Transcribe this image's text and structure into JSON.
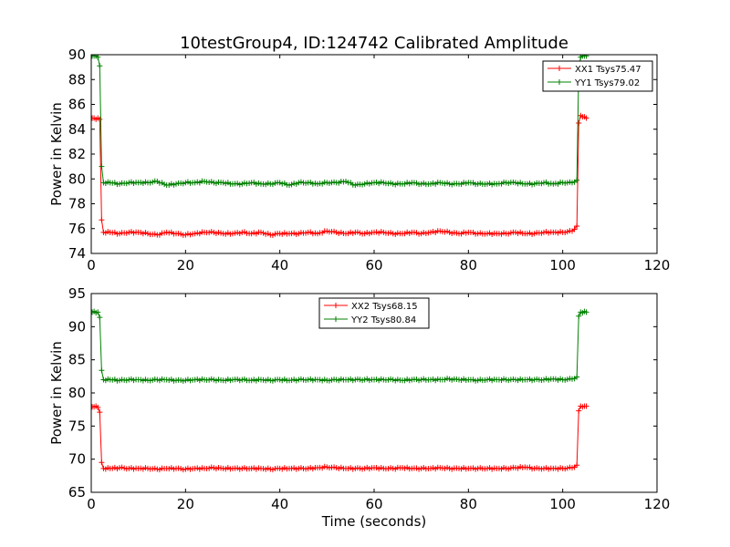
{
  "title": "10testGroup4, ID:124742 Calibrated Amplitude",
  "colors": {
    "red": "#ff0000",
    "green": "#008000"
  },
  "chart_data": [
    {
      "type": "line",
      "title": "10testGroup4, ID:124742 Calibrated Amplitude",
      "xlabel": "",
      "ylabel": "Power in Kelvin",
      "xlim": [
        0,
        120
      ],
      "ylim": [
        74,
        90
      ],
      "xticks": [
        "0",
        "20",
        "40",
        "60",
        "80",
        "100",
        "120"
      ],
      "yticks": [
        "74",
        "76",
        "78",
        "80",
        "82",
        "84",
        "86",
        "88",
        "90"
      ],
      "grid": false,
      "legend_position": "top-right",
      "series": [
        {
          "name": "XX1 Tsys75.47",
          "color": "#ff0000",
          "marker": "+",
          "x": [
            0.2,
            0.6,
            1.0,
            1.4,
            1.8,
            2.2,
            2.6,
            4,
            6,
            8,
            10,
            12,
            14,
            16,
            18,
            20,
            22,
            24,
            26,
            28,
            30,
            32,
            34,
            36,
            38,
            40,
            42,
            44,
            46,
            48,
            50,
            52,
            54,
            56,
            58,
            60,
            62,
            64,
            66,
            68,
            70,
            72,
            74,
            76,
            78,
            80,
            82,
            84,
            86,
            88,
            90,
            92,
            94,
            96,
            98,
            100,
            102,
            103.0,
            103.4,
            103.8,
            104.2,
            104.6,
            105.0
          ],
          "y": [
            84.9,
            84.9,
            84.8,
            84.9,
            84.8,
            76.7,
            75.7,
            75.7,
            75.6,
            75.7,
            75.7,
            75.6,
            75.5,
            75.7,
            75.6,
            75.5,
            75.6,
            75.7,
            75.7,
            75.6,
            75.6,
            75.7,
            75.6,
            75.7,
            75.5,
            75.6,
            75.6,
            75.6,
            75.7,
            75.6,
            75.8,
            75.7,
            75.6,
            75.7,
            75.6,
            75.7,
            75.7,
            75.6,
            75.6,
            75.7,
            75.6,
            75.7,
            75.8,
            75.7,
            75.6,
            75.7,
            75.6,
            75.6,
            75.6,
            75.6,
            75.7,
            75.6,
            75.6,
            75.7,
            75.7,
            75.7,
            75.8,
            76.2,
            84.5,
            85.1,
            85.0,
            85.0,
            84.9
          ]
        },
        {
          "name": "YY1 Tsys79.02",
          "color": "#008000",
          "marker": "+",
          "x": [
            0.2,
            0.6,
            1.0,
            1.4,
            1.8,
            2.2,
            2.6,
            4,
            6,
            8,
            10,
            12,
            14,
            16,
            18,
            20,
            22,
            24,
            26,
            28,
            30,
            32,
            34,
            36,
            38,
            40,
            42,
            44,
            46,
            48,
            50,
            52,
            54,
            56,
            58,
            60,
            62,
            64,
            66,
            68,
            70,
            72,
            74,
            76,
            78,
            80,
            82,
            84,
            86,
            88,
            90,
            92,
            94,
            96,
            98,
            100,
            102,
            103.0,
            103.4,
            103.8,
            104.2,
            104.6,
            105.0
          ],
          "y": [
            89.9,
            89.9,
            89.9,
            89.8,
            89.1,
            81.0,
            79.7,
            79.7,
            79.6,
            79.7,
            79.7,
            79.7,
            79.8,
            79.5,
            79.6,
            79.7,
            79.7,
            79.8,
            79.7,
            79.7,
            79.6,
            79.6,
            79.7,
            79.6,
            79.6,
            79.7,
            79.5,
            79.7,
            79.7,
            79.6,
            79.7,
            79.7,
            79.8,
            79.5,
            79.6,
            79.7,
            79.7,
            79.6,
            79.6,
            79.7,
            79.6,
            79.6,
            79.7,
            79.6,
            79.6,
            79.7,
            79.6,
            79.6,
            79.6,
            79.7,
            79.7,
            79.6,
            79.6,
            79.7,
            79.6,
            79.7,
            79.7,
            79.9,
            88.8,
            89.8,
            89.9,
            89.9,
            89.9
          ]
        }
      ]
    },
    {
      "type": "line",
      "title": "",
      "xlabel": "Time (seconds)",
      "ylabel": "Power in Kelvin",
      "xlim": [
        0,
        120
      ],
      "ylim": [
        65,
        95
      ],
      "xticks": [
        "0",
        "20",
        "40",
        "60",
        "80",
        "100",
        "120"
      ],
      "yticks": [
        "65",
        "70",
        "75",
        "80",
        "85",
        "90",
        "95"
      ],
      "grid": false,
      "legend_position": "top-center",
      "series": [
        {
          "name": "XX2 Tsys68.15",
          "color": "#ff0000",
          "marker": "+",
          "x": [
            0.2,
            0.6,
            1.0,
            1.4,
            1.8,
            2.2,
            2.6,
            4,
            6,
            8,
            10,
            12,
            14,
            16,
            18,
            20,
            22,
            24,
            26,
            28,
            30,
            32,
            34,
            36,
            38,
            40,
            42,
            44,
            46,
            48,
            50,
            52,
            54,
            56,
            58,
            60,
            62,
            64,
            66,
            68,
            70,
            72,
            74,
            76,
            78,
            80,
            82,
            84,
            86,
            88,
            90,
            92,
            94,
            96,
            98,
            100,
            102,
            103.0,
            103.4,
            103.8,
            104.2,
            104.6,
            105.0
          ],
          "y": [
            77.9,
            77.9,
            78.0,
            77.8,
            77.1,
            69.5,
            68.6,
            68.6,
            68.7,
            68.6,
            68.6,
            68.6,
            68.5,
            68.6,
            68.6,
            68.5,
            68.6,
            68.6,
            68.7,
            68.6,
            68.6,
            68.6,
            68.6,
            68.6,
            68.5,
            68.6,
            68.6,
            68.6,
            68.6,
            68.7,
            68.8,
            68.7,
            68.6,
            68.6,
            68.6,
            68.7,
            68.6,
            68.6,
            68.7,
            68.6,
            68.6,
            68.6,
            68.7,
            68.6,
            68.6,
            68.6,
            68.6,
            68.6,
            68.6,
            68.6,
            68.7,
            68.8,
            68.6,
            68.6,
            68.6,
            68.6,
            68.7,
            69.1,
            77.3,
            78.0,
            77.9,
            78.0,
            78.0
          ]
        },
        {
          "name": "YY2 Tsys80.84",
          "color": "#008000",
          "marker": "+",
          "x": [
            0.2,
            0.6,
            1.0,
            1.4,
            1.8,
            2.2,
            2.6,
            4,
            6,
            8,
            10,
            12,
            14,
            16,
            18,
            20,
            22,
            24,
            26,
            28,
            30,
            32,
            34,
            36,
            38,
            40,
            42,
            44,
            46,
            48,
            50,
            52,
            54,
            56,
            58,
            60,
            62,
            64,
            66,
            68,
            70,
            72,
            74,
            76,
            78,
            80,
            82,
            84,
            86,
            88,
            90,
            92,
            94,
            96,
            98,
            100,
            102,
            103.0,
            103.4,
            103.8,
            104.2,
            104.6,
            105.0
          ],
          "y": [
            92.2,
            92.3,
            92.1,
            92.2,
            91.4,
            83.4,
            82.0,
            82.0,
            81.9,
            82.0,
            82.0,
            81.9,
            82.0,
            82.0,
            81.9,
            81.9,
            82.0,
            82.0,
            82.0,
            81.9,
            82.0,
            82.0,
            81.9,
            82.0,
            81.9,
            82.0,
            81.9,
            82.0,
            82.0,
            82.0,
            81.9,
            82.0,
            82.0,
            82.0,
            82.0,
            82.0,
            82.0,
            82.0,
            81.9,
            82.0,
            82.0,
            82.0,
            82.0,
            82.1,
            82.0,
            82.0,
            81.9,
            82.0,
            82.0,
            82.0,
            82.0,
            82.0,
            82.0,
            82.0,
            82.1,
            82.0,
            82.1,
            82.4,
            91.6,
            92.2,
            92.1,
            92.3,
            92.2
          ]
        }
      ]
    }
  ]
}
